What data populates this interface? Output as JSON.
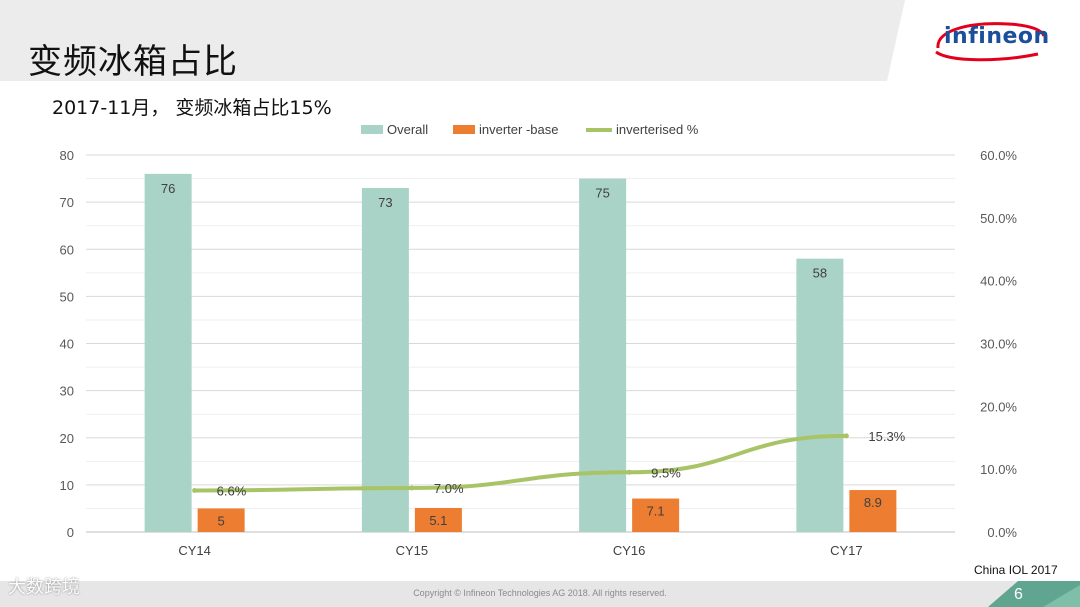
{
  "slide": {
    "title": "变频冰箱占比",
    "subtitle": "2017-11月， 变频冰箱占比15%",
    "logo_text": "infineon",
    "source_note": "China IOL 2017",
    "copyright": "Copyright © Infineon Technologies AG 2018. All rights reserved.",
    "page_number": "6",
    "watermark": "大数跨境",
    "colors": {
      "accent_green": "#5fa58f",
      "band_gray": "#ececec"
    }
  },
  "chart_data": {
    "type": "bar",
    "categories": [
      "CY14",
      "CY15",
      "CY16",
      "CY17"
    ],
    "series": [
      {
        "name": "Overall",
        "type": "bar",
        "axis": "left",
        "values": [
          76,
          73,
          75,
          58
        ],
        "labels": [
          "76",
          "73",
          "75",
          "58"
        ],
        "color": "#a9d3c7"
      },
      {
        "name": "inverter -base",
        "type": "bar",
        "axis": "left",
        "values": [
          5,
          5.1,
          7.1,
          8.9
        ],
        "labels": [
          "5",
          "5.1",
          "7.1",
          "8.9"
        ],
        "color": "#ed7d31"
      },
      {
        "name": "inverterised %",
        "type": "line",
        "axis": "right",
        "values": [
          6.6,
          7.0,
          9.5,
          15.3
        ],
        "labels": [
          "6.6%",
          "7.0%",
          "9.5%",
          "15.3%"
        ],
        "color": "#a9c467"
      }
    ],
    "y_left": {
      "ylim": [
        0,
        80
      ],
      "ticks": [
        "0",
        "10",
        "20",
        "30",
        "40",
        "50",
        "60",
        "70",
        "80"
      ]
    },
    "y_right": {
      "ylim": [
        0,
        60
      ],
      "ticks": [
        "0.0%",
        "10.0%",
        "20.0%",
        "30.0%",
        "40.0%",
        "50.0%",
        "60.0%"
      ]
    },
    "legend_position": "top",
    "grid": true
  }
}
